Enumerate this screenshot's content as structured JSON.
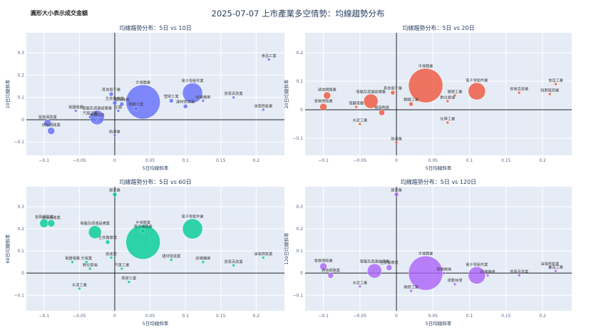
{
  "note": "圓形大小表示成交金額",
  "chart_data": [
    {
      "type": "scatter",
      "title": "均線趨勢分布：5日 vs 10日",
      "xlabel": "5日均線斜率",
      "ylabel": "10日均線斜率",
      "color": "#636efa",
      "xlim": [
        -0.125,
        0.24
      ],
      "ylim": [
        -0.16,
        0.39
      ],
      "xticks": [
        -0.1,
        -0.05,
        0,
        0.05,
        0.1,
        0.15,
        0.2
      ],
      "yticks": [
        -0.1,
        0,
        0.1,
        0.2,
        0.3
      ],
      "points": [
        {
          "label": "食品工業",
          "x": 0.218,
          "y": 0.27,
          "size": 2
        },
        {
          "label": "電子零組件業",
          "x": 0.11,
          "y": 0.12,
          "size": 14
        },
        {
          "label": "貿易百貨業",
          "x": 0.168,
          "y": 0.1,
          "size": 2
        },
        {
          "label": "紡織纖維",
          "x": 0.125,
          "y": 0.085,
          "size": 2
        },
        {
          "label": "油電燃氣業",
          "x": 0.21,
          "y": 0.045,
          "size": 2
        },
        {
          "label": "半導體業",
          "x": 0.04,
          "y": 0.08,
          "size": 24
        },
        {
          "label": "塑膠工業",
          "x": 0.08,
          "y": 0.085,
          "size": 3
        },
        {
          "label": "建材營造業",
          "x": 0.1,
          "y": 0.06,
          "size": 3
        },
        {
          "label": "其他電子業",
          "x": -0.005,
          "y": 0.115,
          "size": 3
        },
        {
          "label": "鋼鐵工業",
          "x": 0.03,
          "y": 0.05,
          "size": 3
        },
        {
          "label": "生技醫療業",
          "x": 0.0,
          "y": 0.075,
          "size": 3
        },
        {
          "label": "電機機械",
          "x": 0.01,
          "y": 0.07,
          "size": 3
        },
        {
          "label": "生醫",
          "x": 0.005,
          "y": 0.04,
          "size": 2
        },
        {
          "label": "電器電纜",
          "x": -0.055,
          "y": 0.04,
          "size": 2
        },
        {
          "label": "電腦及週邊設備業",
          "x": -0.025,
          "y": 0.01,
          "size": 10
        },
        {
          "label": "玻璃陶瓷",
          "x": -0.025,
          "y": 0.005,
          "size": 2
        },
        {
          "label": "汽車工業",
          "x": -0.035,
          "y": 0.012,
          "size": 2
        },
        {
          "label": "金融保險業",
          "x": -0.095,
          "y": -0.015,
          "size": 5
        },
        {
          "label": "通信網路業",
          "x": -0.09,
          "y": -0.05,
          "size": 5
        },
        {
          "label": "航運業",
          "x": 0.0,
          "y": -0.07,
          "size": 2
        }
      ]
    },
    {
      "type": "scatter",
      "title": "均線趨勢分布：5日 vs 20日",
      "xlabel": "5日均線斜率",
      "ylabel": "20日均線斜率",
      "color": "#ef553b",
      "xlim": [
        -0.125,
        0.24
      ],
      "ylim": [
        -0.16,
        0.27
      ],
      "xticks": [
        -0.1,
        -0.05,
        0,
        0.05,
        0.1,
        0.15,
        0.2
      ],
      "yticks": [
        -0.1,
        0,
        0.1,
        0.2
      ],
      "points": [
        {
          "label": "食品工業",
          "x": 0.218,
          "y": 0.09,
          "size": 2
        },
        {
          "label": "短期電商業",
          "x": 0.21,
          "y": 0.055,
          "size": 2
        },
        {
          "label": "半導體業",
          "x": 0.04,
          "y": 0.085,
          "size": 24
        },
        {
          "label": "電子零組件業",
          "x": 0.11,
          "y": 0.065,
          "size": 12
        },
        {
          "label": "貿易百貨業",
          "x": 0.168,
          "y": 0.06,
          "size": 2
        },
        {
          "label": "塑膠工業",
          "x": 0.08,
          "y": 0.05,
          "size": 2
        },
        {
          "label": "數位雲端",
          "x": 0.07,
          "y": 0.03,
          "size": 2
        },
        {
          "label": "鋼鐵工業",
          "x": 0.02,
          "y": 0.02,
          "size": 3
        },
        {
          "label": "金融保險業",
          "x": -0.1,
          "y": 0.01,
          "size": 5
        },
        {
          "label": "通信網路業",
          "x": -0.095,
          "y": 0.05,
          "size": 5
        },
        {
          "label": "電腦及週邊設備業",
          "x": -0.035,
          "y": 0.03,
          "size": 10
        },
        {
          "label": "其他電子業",
          "x": -0.005,
          "y": 0.06,
          "size": 3
        },
        {
          "label": "電器電纜",
          "x": -0.055,
          "y": 0.01,
          "size": 2
        },
        {
          "label": "水泥工業",
          "x": -0.05,
          "y": -0.05,
          "size": 2
        },
        {
          "label": "航運業",
          "x": 0.0,
          "y": -0.115,
          "size": 2
        },
        {
          "label": "玻璃陶瓷",
          "x": -0.02,
          "y": -0.01,
          "size": 4
        },
        {
          "label": "化學工業",
          "x": 0.07,
          "y": -0.045,
          "size": 2
        }
      ]
    },
    {
      "type": "scatter",
      "title": "均線趨勢分布：5日 vs 60日",
      "xlabel": "5日均線斜率",
      "ylabel": "60日均線斜率",
      "color": "#00cc96",
      "xlim": [
        -0.125,
        0.24
      ],
      "ylim": [
        -0.17,
        0.39
      ],
      "xticks": [
        -0.1,
        -0.05,
        0,
        0.05,
        0.1,
        0.15,
        0.2
      ],
      "yticks": [
        -0.1,
        0,
        0.1,
        0.2,
        0.3
      ],
      "points": [
        {
          "label": "居家業",
          "x": 0.0,
          "y": 0.355,
          "size": 3
        },
        {
          "label": "金融保險業",
          "x": -0.1,
          "y": 0.225,
          "size": 6
        },
        {
          "label": "通信網路業",
          "x": -0.09,
          "y": 0.225,
          "size": 5
        },
        {
          "label": "電子零組件業",
          "x": 0.11,
          "y": 0.2,
          "size": 14
        },
        {
          "label": "半導體業",
          "x": 0.04,
          "y": 0.14,
          "size": 24
        },
        {
          "label": "電腦及週邊設備業",
          "x": -0.028,
          "y": 0.185,
          "size": 9
        },
        {
          "label": "生技醫療業",
          "x": -0.01,
          "y": 0.14,
          "size": 3
        },
        {
          "label": "電子通路業",
          "x": 0.04,
          "y": 0.19,
          "size": 3
        },
        {
          "label": "電器電纜",
          "x": -0.06,
          "y": 0.05,
          "size": 2
        },
        {
          "label": "光電業",
          "x": -0.04,
          "y": 0.05,
          "size": 2
        },
        {
          "label": "航運業",
          "x": -0.005,
          "y": 0.07,
          "size": 2
        },
        {
          "label": "建材營造業",
          "x": 0.08,
          "y": 0.06,
          "size": 2
        },
        {
          "label": "紡織纖維",
          "x": 0.125,
          "y": 0.05,
          "size": 2
        },
        {
          "label": "貿易百貨業",
          "x": 0.168,
          "y": 0.035,
          "size": 2
        },
        {
          "label": "油電燃氣業",
          "x": 0.21,
          "y": 0.07,
          "size": 2
        },
        {
          "label": "數位雲端",
          "x": -0.035,
          "y": 0.02,
          "size": 2
        },
        {
          "label": "汽車工業",
          "x": 0.01,
          "y": 0.02,
          "size": 2
        },
        {
          "label": "橡膠工業",
          "x": 0.02,
          "y": -0.04,
          "size": 2
        },
        {
          "label": "水泥工業",
          "x": -0.05,
          "y": -0.07,
          "size": 2
        }
      ]
    },
    {
      "type": "scatter",
      "title": "均線趨勢分布：5日 vs 120日",
      "xlabel": "5日均線斜率",
      "ylabel": "120日均線斜率",
      "color": "#ab63fa",
      "xlim": [
        -0.125,
        0.24
      ],
      "ylim": [
        -0.17,
        0.39
      ],
      "xticks": [
        -0.1,
        -0.05,
        0,
        0.05,
        0.1,
        0.15,
        0.2
      ],
      "yticks": [
        -0.1,
        0,
        0.1,
        0.2,
        0.3
      ],
      "points": [
        {
          "label": "居家業",
          "x": 0.0,
          "y": 0.355,
          "size": 3
        },
        {
          "label": "半導體業",
          "x": 0.04,
          "y": 0.0,
          "size": 24
        },
        {
          "label": "電子零組件業",
          "x": 0.11,
          "y": -0.01,
          "size": 12
        },
        {
          "label": "電腦及週邊設備業",
          "x": -0.03,
          "y": 0.01,
          "size": 10
        },
        {
          "label": "金融保險業",
          "x": -0.1,
          "y": 0.03,
          "size": 5
        },
        {
          "label": "通信網路業",
          "x": -0.09,
          "y": -0.01,
          "size": 4
        },
        {
          "label": "生技醫療業",
          "x": -0.01,
          "y": 0.025,
          "size": 4
        },
        {
          "label": "油電燃氣業",
          "x": 0.21,
          "y": 0.025,
          "size": 2
        },
        {
          "label": "食品工業",
          "x": 0.218,
          "y": 0.01,
          "size": 2
        },
        {
          "label": "貿易百貨業",
          "x": 0.168,
          "y": -0.01,
          "size": 2
        },
        {
          "label": "紡織纖維",
          "x": 0.125,
          "y": -0.01,
          "size": 2
        },
        {
          "label": "電機機械",
          "x": 0.065,
          "y": 0.0,
          "size": 2
        },
        {
          "label": "運動休閒",
          "x": 0.08,
          "y": -0.05,
          "size": 2
        },
        {
          "label": "水泥工業",
          "x": -0.05,
          "y": -0.06,
          "size": 2
        },
        {
          "label": "橡膠工業",
          "x": 0.02,
          "y": -0.08,
          "size": 2
        }
      ]
    }
  ]
}
